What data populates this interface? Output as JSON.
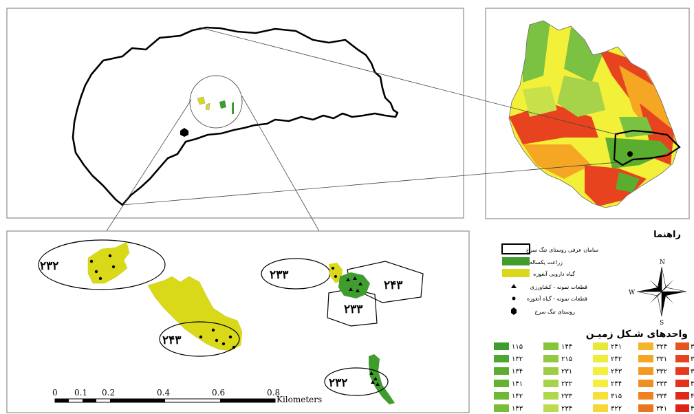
{
  "legend": {
    "title": "راهنما",
    "items": [
      {
        "label": "سامان عرفی روستای تنگ سرخ",
        "symbol": "boundary-box"
      },
      {
        "label": "زراعت یکساله",
        "symbol": "green-box",
        "color": "#3f9c2e"
      },
      {
        "label": "گیاه دارویی آنغوزه",
        "symbol": "yellow-box",
        "color": "#d9d91a"
      },
      {
        "label": "قطعات نمونه - کشاورزی",
        "symbol": "triangle"
      },
      {
        "label": "قطعات نمونه - گیاه آنغوزه",
        "symbol": "dot"
      },
      {
        "label": "روستای تنگ سرخ",
        "symbol": "hexagon"
      }
    ]
  },
  "landform": {
    "title": "واحدهای شـکل زمیـن",
    "columns": [
      {
        "color": "#4ea72e",
        "codes": [
          "۱۱۵",
          "۱۳۲",
          "۱۳۴",
          "۱۴۱",
          "۱۴۲",
          "۱۴۳"
        ]
      },
      {
        "color": "#8cc63f",
        "codes": [
          "۱۴۴",
          "۲۱۵",
          "۲۳۱",
          "۲۳۲",
          "۲۳۳",
          "۲۳۴"
        ]
      },
      {
        "color": "#f3f03a",
        "codes": [
          "۲۴۱",
          "۲۴۲",
          "۲۴۳",
          "۲۴۴",
          "۳۱۵",
          "۳۲۲"
        ]
      },
      {
        "color": "#f5a623",
        "codes": [
          "۳۲۴",
          "۳۳۱",
          "۳۳۲",
          "۳۳۳",
          "۳۳۴",
          "۳۴۱"
        ]
      },
      {
        "color": "#e8431f",
        "codes": [
          "۳",
          "۳",
          "۳",
          "۴",
          "۴",
          "۴"
        ]
      }
    ]
  },
  "zones": [
    {
      "code": "۲۳۲",
      "where": "upper-left"
    },
    {
      "code": "۲۴۳",
      "where": "lower-left"
    },
    {
      "code": "۲۳۳",
      "where": "center-left"
    },
    {
      "code": "۲۴۳",
      "where": "center-right"
    },
    {
      "code": "۲۳۳",
      "where": "center-bottom"
    },
    {
      "code": "۲۳۲",
      "where": "bottom-right"
    }
  ],
  "compass": {
    "n": "N",
    "s": "S",
    "w": "W"
  },
  "scale_bar": {
    "ticks": [
      "0",
      "0.1",
      "0.2",
      "0.4",
      "0.6",
      "0.8"
    ],
    "unit": "Kilometers"
  },
  "colors": {
    "annual_crop": "#3f9c2e",
    "ferula": "#d9d91a",
    "landform_low": "#4ea72e",
    "landform_mid": "#f3f03a",
    "landform_high": "#e8431f"
  }
}
